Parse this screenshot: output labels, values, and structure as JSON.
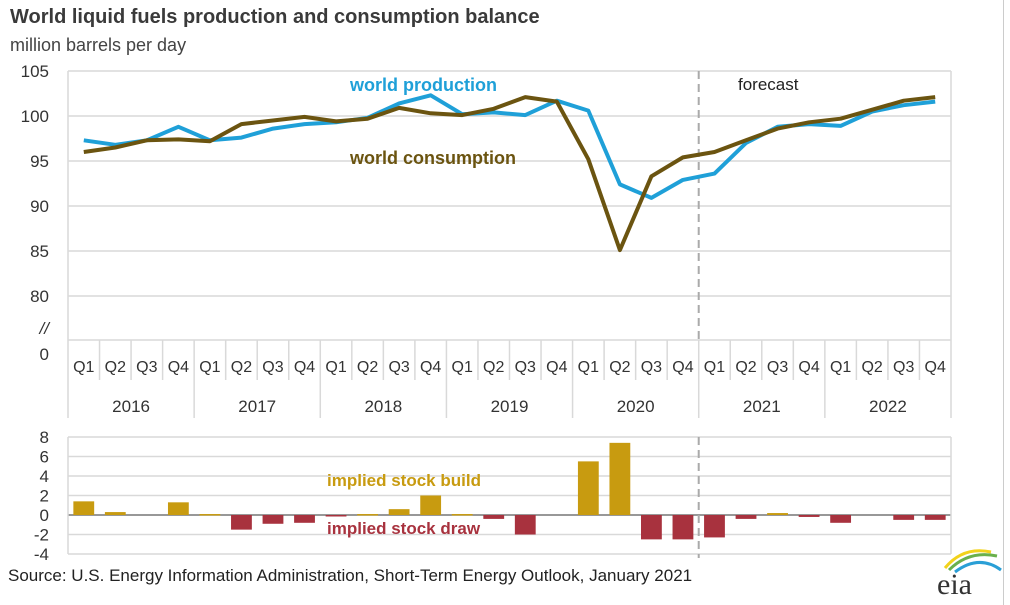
{
  "header": {
    "title": "World liquid fuels production and consumption balance",
    "subtitle": "million barrels per day"
  },
  "footer": {
    "source": "Source: U.S. Energy Information Administration, Short-Term Energy Outlook, January 2021",
    "logo_text": "eia"
  },
  "colors": {
    "production": "#1fa0d8",
    "consumption": "#6b5410",
    "build": "#c89b10",
    "draw": "#a8323e",
    "forecast_line": "#aaaaaa"
  },
  "chart_data": [
    {
      "type": "line",
      "title": "World liquid fuels production and consumption balance",
      "ylabel": "million barrels per day",
      "ylim": [
        80,
        105
      ],
      "yticks": [
        "105",
        "100",
        "95",
        "90",
        "85",
        "80"
      ],
      "axis_break_label": "//",
      "zero_label": "0",
      "grid": true,
      "quarters": [
        "Q1",
        "Q2",
        "Q3",
        "Q4",
        "Q1",
        "Q2",
        "Q3",
        "Q4",
        "Q1",
        "Q2",
        "Q3",
        "Q4",
        "Q1",
        "Q2",
        "Q3",
        "Q4",
        "Q1",
        "Q2",
        "Q3",
        "Q4",
        "Q1",
        "Q2",
        "Q3",
        "Q4",
        "Q1",
        "Q2",
        "Q3",
        "Q4"
      ],
      "years": [
        "2016",
        "2017",
        "2018",
        "2019",
        "2020",
        "2021",
        "2022"
      ],
      "forecast_start_index": 20,
      "forecast_label": "forecast",
      "series": [
        {
          "name": "world production",
          "values": [
            97.3,
            96.8,
            97.3,
            98.8,
            97.3,
            97.6,
            98.6,
            99.1,
            99.3,
            99.8,
            101.4,
            102.3,
            100.2,
            100.4,
            100.1,
            101.7,
            100.6,
            92.4,
            90.9,
            92.9,
            93.6,
            97.0,
            98.8,
            99.1,
            98.9,
            100.5,
            101.2,
            101.6
          ]
        },
        {
          "name": "world consumption",
          "values": [
            96.0,
            96.5,
            97.3,
            97.4,
            97.2,
            99.1,
            99.5,
            99.9,
            99.4,
            99.7,
            100.9,
            100.3,
            100.1,
            100.8,
            102.1,
            101.6,
            95.2,
            85.1,
            93.3,
            95.4,
            96.0,
            97.3,
            98.6,
            99.3,
            99.7,
            100.7,
            101.7,
            102.1
          ]
        }
      ]
    },
    {
      "type": "bar",
      "title": "implied stock change",
      "ylim": [
        -4,
        8
      ],
      "yticks": [
        "8",
        "6",
        "4",
        "2",
        "0",
        "-2",
        "-4"
      ],
      "grid": true,
      "legend": {
        "build": "implied stock  build",
        "draw": "implied stock draw"
      },
      "values": [
        1.4,
        0.3,
        0.0,
        1.3,
        0.1,
        -1.5,
        -0.9,
        -0.8,
        -0.1,
        0.1,
        0.6,
        2.0,
        0.1,
        -0.4,
        -2.0,
        0.0,
        5.5,
        7.4,
        -2.5,
        -2.5,
        -2.3,
        -0.4,
        0.2,
        -0.2,
        -0.8,
        0.0,
        -0.5,
        -0.5
      ]
    }
  ]
}
